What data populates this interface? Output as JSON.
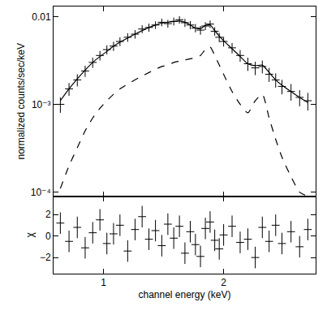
{
  "chart_data": [
    {
      "type": "scatter",
      "y_label": "normalized counts/sec/keV",
      "log": true,
      "tick_labels": "y",
      "x": [
        0.78,
        0.82,
        0.86,
        0.9,
        0.94,
        0.98,
        1.02,
        1.06,
        1.1,
        1.15,
        1.2,
        1.25,
        1.3,
        1.35,
        1.4,
        1.45,
        1.5,
        1.55,
        1.6,
        1.65,
        1.7,
        1.75,
        1.8,
        1.85,
        1.9,
        1.95,
        2.0,
        2.1,
        2.2,
        2.3,
        2.4,
        2.5,
        2.6,
        2.7,
        2.8,
        2.95,
        3.1,
        3.25
      ],
      "xlim": [
        0.75,
        3.4
      ],
      "xticks": [
        1,
        2
      ],
      "ylim": [
        9e-05,
        0.013
      ],
      "yticks": [
        {
          "value": 0.0001,
          "label": "10⁻⁴"
        },
        {
          "value": 0.001,
          "label": "10⁻³"
        },
        0.01
      ],
      "series": [
        {
          "type": "scatter",
          "marker": "line-ew",
          "line_style": "none",
          "color": "#000000",
          "values": [
            0.001,
            0.0015,
            0.0019,
            0.0024,
            0.003,
            0.0036,
            0.0042,
            0.0046,
            0.0052,
            0.0058,
            0.0063,
            0.0072,
            0.0075,
            0.008,
            0.0086,
            0.0083,
            0.0088,
            0.0092,
            0.0085,
            0.008,
            0.0074,
            0.007,
            0.0078,
            0.0082,
            0.0068,
            0.0058,
            0.0052,
            0.0044,
            0.0036,
            0.0029,
            0.0026,
            0.0027,
            0.0022,
            0.0019,
            0.0016,
            0.0014,
            0.0012,
            0.0011
          ],
          "errors": [
            0.0002,
            0.00025,
            0.0003,
            0.00035,
            0.0004,
            0.00045,
            0.0005,
            0.00055,
            0.0006,
            0.00065,
            0.0007,
            0.00075,
            0.0008,
            0.0008,
            0.00085,
            0.00085,
            0.0009,
            0.0009,
            0.0009,
            0.00085,
            0.0008,
            0.0008,
            0.0008,
            0.0008,
            0.00075,
            0.0007,
            0.00065,
            0.0006,
            0.00055,
            0.0005,
            0.00045,
            0.00045,
            0.0004,
            0.00035,
            0.0003,
            0.0003,
            0.00025,
            0.00025
          ]
        },
        {
          "type": "line",
          "marker": "none",
          "line_style": "solid",
          "color": "#000000",
          "values": [
            0.0011,
            0.0015,
            0.00195,
            0.00245,
            0.003,
            0.0035,
            0.004,
            0.0046,
            0.0051,
            0.0057,
            0.0063,
            0.0069,
            0.0075,
            0.008,
            0.0084,
            0.0086,
            0.0088,
            0.0089,
            0.0086,
            0.008,
            0.0074,
            0.0073,
            0.0079,
            0.008,
            0.0069,
            0.006,
            0.0053,
            0.0043,
            0.0035,
            0.0029,
            0.00275,
            0.0028,
            0.0023,
            0.0019,
            0.00165,
            0.0014,
            0.0012,
            0.00105
          ]
        },
        {
          "type": "line",
          "marker": "none",
          "line_style": "dash",
          "color": "#000000",
          "values": [
            0.00011,
            0.0002,
            0.00032,
            0.0005,
            0.0007,
            0.0009,
            0.0011,
            0.0013,
            0.0015,
            0.0017,
            0.0019,
            0.0021,
            0.0023,
            0.0025,
            0.0027,
            0.0028,
            0.003,
            0.0031,
            0.0032,
            0.0033,
            0.0034,
            0.0036,
            0.0042,
            0.0045,
            0.0036,
            0.0028,
            0.0022,
            0.0014,
            0.001,
            0.0008,
            0.0011,
            0.0013,
            0.0007,
            0.0004,
            0.00025,
            0.00015,
            0.0001,
            9e-05
          ]
        }
      ]
    },
    {
      "type": "scatter",
      "x_label": "channel energy (keV)",
      "y_label": "χ",
      "log": "x",
      "x": [
        0.78,
        0.82,
        0.86,
        0.9,
        0.94,
        0.98,
        1.02,
        1.06,
        1.1,
        1.15,
        1.2,
        1.25,
        1.3,
        1.35,
        1.4,
        1.45,
        1.5,
        1.55,
        1.6,
        1.65,
        1.7,
        1.75,
        1.8,
        1.85,
        1.9,
        1.95,
        2.0,
        2.1,
        2.2,
        2.3,
        2.4,
        2.5,
        2.6,
        2.7,
        2.8,
        2.95,
        3.1,
        3.25
      ],
      "xlim": [
        0.75,
        3.4
      ],
      "xticks": [
        1,
        2
      ],
      "ylim": [
        -3.5,
        3.7
      ],
      "yticks": [
        {
          "value": -2,
          "label": "−2"
        },
        0,
        2
      ],
      "series": [
        {
          "type": "scatter",
          "marker": "line-ew",
          "line_style": "none",
          "color": "#000000",
          "values": [
            1.2,
            -0.5,
            0.8,
            -1.1,
            0.3,
            1.5,
            -0.7,
            0.2,
            1.0,
            -1.4,
            0.6,
            1.8,
            -0.3,
            0.5,
            -0.9,
            1.1,
            -0.2,
            0.9,
            -1.6,
            0.4,
            -0.8,
            -1.9,
            0.7,
            1.3,
            -0.4,
            -1.2,
            0.1,
            0.9,
            -0.6,
            -0.3,
            -2.0,
            0.8,
            -0.5,
            1.0,
            -0.7,
            0.4,
            -1.0,
            0.6
          ],
          "errors": [
            1,
            1,
            1,
            1,
            1,
            1,
            1,
            1,
            1,
            1,
            1,
            1,
            1,
            1,
            1,
            1,
            1,
            1,
            1,
            1,
            1,
            1,
            1,
            1,
            1,
            1,
            1,
            1,
            1,
            1,
            1,
            1,
            1,
            1,
            1,
            1,
            1,
            1
          ]
        }
      ]
    }
  ]
}
